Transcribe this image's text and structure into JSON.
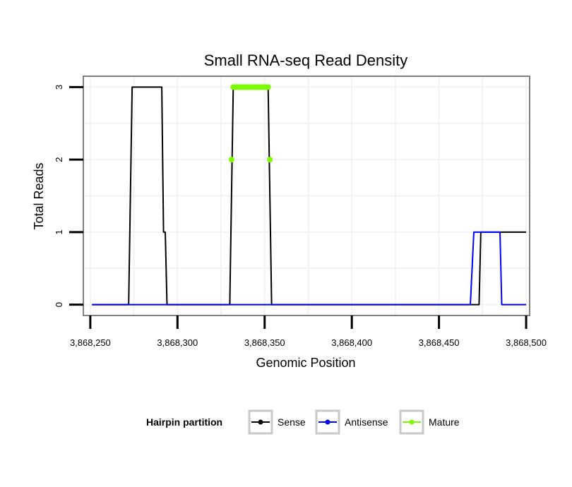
{
  "chart_data": {
    "type": "line",
    "title": "Small RNA-seq Read Density",
    "xlabel": "Genomic Position",
    "ylabel": "Total Reads",
    "xlim": [
      3868246,
      3868502
    ],
    "ylim": [
      -0.15,
      3.15
    ],
    "x_ticks": [
      3868250,
      3868300,
      3868350,
      3868400,
      3868450,
      3868500
    ],
    "x_tick_labels": [
      "3,868,250",
      "3,868,300",
      "3,868,350",
      "3,868,400",
      "3,868,450",
      "3,868,500"
    ],
    "y_ticks": [
      0,
      1,
      2,
      3
    ],
    "y_tick_labels": [
      "0",
      "1",
      "2",
      "3"
    ],
    "grid": true,
    "legend": {
      "title": "Hairpin partition",
      "position": "bottom",
      "entries": [
        {
          "name": "Sense",
          "color": "#000000"
        },
        {
          "name": "Antisense",
          "color": "#0000ff"
        },
        {
          "name": "Mature",
          "color": "#7cfc00"
        }
      ]
    },
    "series": [
      {
        "name": "Sense",
        "color": "#000000",
        "x": [
          3868251,
          3868272,
          3868274,
          3868291,
          3868292,
          3868293,
          3868294,
          3868330,
          3868332,
          3868352,
          3868354,
          3868473,
          3868474,
          3868500
        ],
        "y": [
          0,
          0,
          3,
          3,
          1,
          1,
          0,
          0,
          3,
          3,
          0,
          0,
          1,
          1
        ]
      },
      {
        "name": "Antisense",
        "color": "#0000ff",
        "x": [
          3868251,
          3868468,
          3868470,
          3868473,
          3868474,
          3868485,
          3868486,
          3868500
        ],
        "y": [
          0,
          0,
          1,
          1,
          1,
          1,
          0,
          0
        ]
      },
      {
        "name": "Mature",
        "color": "#7cfc00",
        "x": [
          3868331,
          3868332,
          3868333,
          3868334,
          3868335,
          3868336,
          3868337,
          3868338,
          3868339,
          3868340,
          3868341,
          3868342,
          3868343,
          3868344,
          3868345,
          3868346,
          3868347,
          3868348,
          3868349,
          3868350,
          3868351,
          3868352,
          3868353
        ],
        "y": [
          2,
          3,
          3,
          3,
          3,
          3,
          3,
          3,
          3,
          3,
          3,
          3,
          3,
          3,
          3,
          3,
          3,
          3,
          3,
          3,
          3,
          3,
          2
        ]
      }
    ]
  }
}
